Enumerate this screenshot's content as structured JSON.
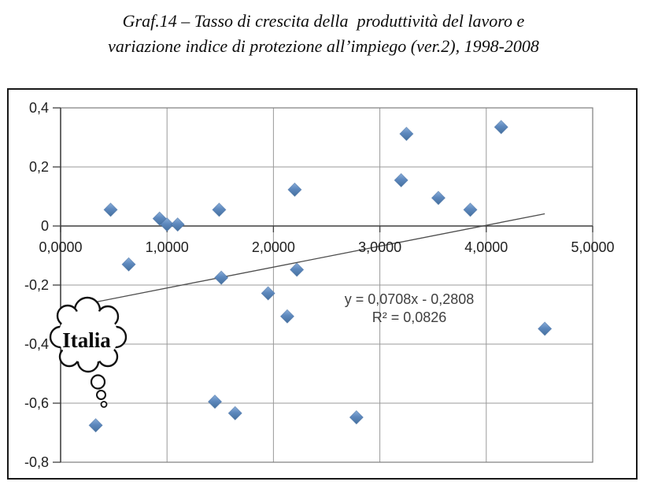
{
  "title": {
    "line1": "Graf.14 – Tasso di crescita della  produttività del lavoro e",
    "line2": "variazione indice di protezione all’impiego (ver.2), 1998-2008"
  },
  "chart_data": {
    "type": "scatter",
    "title": "Graf.14 – Tasso di crescita della produttività del lavoro e variazione indice di protezione all’impiego (ver.2), 1998-2008",
    "xlabel": "",
    "ylabel": "",
    "grid": true,
    "legend": "none",
    "x_axis": {
      "min": 0,
      "max": 5,
      "ticks": [
        {
          "value": 0,
          "label": "0,0000"
        },
        {
          "value": 1,
          "label": "1,0000"
        },
        {
          "value": 2,
          "label": "2,0000"
        },
        {
          "value": 3,
          "label": "3,0000"
        },
        {
          "value": 4,
          "label": "4,0000"
        },
        {
          "value": 5,
          "label": "5,0000"
        }
      ]
    },
    "y_axis": {
      "min": -0.8,
      "max": 0.4,
      "ticks": [
        {
          "value": 0.4,
          "label": "0,4"
        },
        {
          "value": 0.2,
          "label": "0,2"
        },
        {
          "value": 0,
          "label": "0"
        },
        {
          "value": -0.2,
          "label": "-0,2"
        },
        {
          "value": -0.4,
          "label": "-0,4"
        },
        {
          "value": -0.6,
          "label": "-0,6"
        },
        {
          "value": -0.8,
          "label": "-0,8"
        }
      ]
    },
    "points": [
      [
        0.47,
        0.055
      ],
      [
        0.93,
        0.025
      ],
      [
        1.0,
        0.005
      ],
      [
        1.1,
        0.005
      ],
      [
        1.49,
        0.055
      ],
      [
        2.2,
        0.123
      ],
      [
        3.25,
        0.312
      ],
      [
        4.14,
        0.335
      ],
      [
        3.2,
        0.155
      ],
      [
        3.55,
        0.095
      ],
      [
        3.85,
        0.055
      ],
      [
        0.64,
        -0.13
      ],
      [
        1.51,
        -0.175
      ],
      [
        2.22,
        -0.148
      ],
      [
        1.95,
        -0.228
      ],
      [
        2.13,
        -0.306
      ],
      [
        0.33,
        -0.675
      ],
      [
        1.45,
        -0.595
      ],
      [
        1.64,
        -0.634
      ],
      [
        2.78,
        -0.648
      ],
      [
        4.55,
        -0.348
      ]
    ],
    "trendline": {
      "slope": 0.0708,
      "intercept": -0.2808,
      "x_start": 0.33,
      "x_end": 4.55,
      "equation": "y = 0,0708x - 0,2808",
      "r_squared": "R² = 0,0826"
    },
    "annotation": {
      "label": "Italia",
      "type": "thought-bubble",
      "points_to": [
        0.33,
        -0.675
      ]
    },
    "colors": {
      "marker": "#4f81bd",
      "marker_light": "#8aaed9",
      "marker_dark": "#40699e",
      "gridline": "#9a9a9a",
      "plot_border": "#7d7d7d",
      "axis": "#3f3f3f",
      "trendline": "#4d4d4d",
      "equation_text": "#3f3f3f",
      "chart_border": "#191919"
    }
  }
}
